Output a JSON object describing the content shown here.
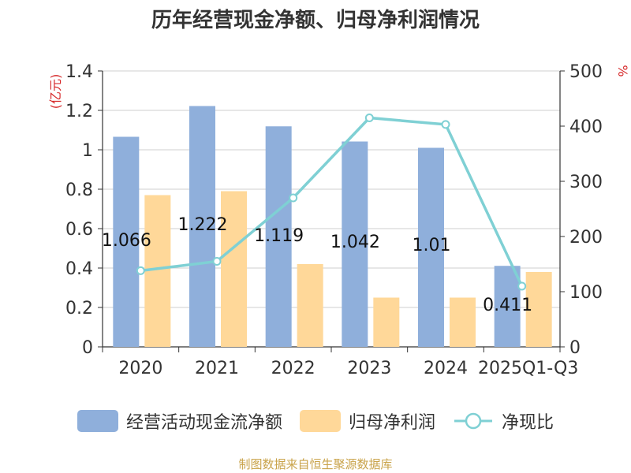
{
  "title": "历年经营现金净额、归母净利润情况",
  "source": "制图数据来自恒生聚源数据库",
  "colors": {
    "cash": "#8fafdb",
    "profit": "#ffd899",
    "ratio": "#7fd0d4",
    "unit_text": "#d62728"
  },
  "chart_data": {
    "type": "bar",
    "categories": [
      "2020",
      "2021",
      "2022",
      "2023",
      "2024",
      "2025Q1-Q3"
    ],
    "series": [
      {
        "name": "经营活动现金流净额",
        "axis": "left",
        "type": "bar",
        "values": [
          1.066,
          1.222,
          1.119,
          1.042,
          1.01,
          0.411
        ],
        "labels": [
          "1.066",
          "1.222",
          "1.119",
          "1.042",
          "1.01",
          "0.411"
        ]
      },
      {
        "name": "归母净利润",
        "axis": "left",
        "type": "bar",
        "values": [
          0.77,
          0.79,
          0.42,
          0.25,
          0.25,
          0.38
        ]
      },
      {
        "name": "净现比",
        "axis": "right",
        "type": "line",
        "values": [
          138,
          155,
          270,
          415,
          403,
          110
        ]
      }
    ],
    "ylabel_left": "(亿元)",
    "ylabel_right": "%",
    "ylim_left": [
      0,
      1.4
    ],
    "yticks_left": [
      "0",
      "0.2",
      "0.4",
      "0.6",
      "0.8",
      "1",
      "1.2",
      "1.4"
    ],
    "ylim_right": [
      0,
      500
    ],
    "yticks_right": [
      "0",
      "100",
      "200",
      "300",
      "400",
      "500"
    ],
    "grid": true,
    "legend_position": "bottom"
  }
}
